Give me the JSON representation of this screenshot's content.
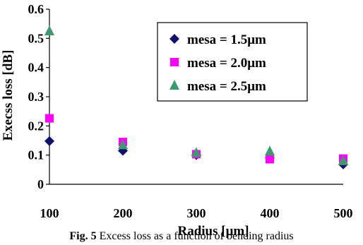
{
  "chart_data": {
    "type": "scatter",
    "title": "",
    "xlabel": "Radius [μm]",
    "ylabel": "Execss loss [dB]",
    "xlim": [
      100,
      500
    ],
    "ylim": [
      0,
      0.6
    ],
    "x_ticks": [
      "100",
      "200",
      "300",
      "400",
      "500"
    ],
    "y_ticks": [
      "0",
      "0.1",
      "0.2",
      "0.3",
      "0.4",
      "0.5",
      "0.6"
    ],
    "grid": false,
    "legend_position": "top-right",
    "series": [
      {
        "name": "mesa = 1.5μm",
        "marker": "diamond",
        "color": "#10106e",
        "x": [
          100,
          200,
          300,
          400,
          500
        ],
        "y": [
          0.148,
          0.115,
          0.1,
          0.09,
          0.068
        ]
      },
      {
        "name": "mesa = 2.0μm",
        "marker": "square",
        "color": "#ff00ff",
        "x": [
          100,
          200,
          300,
          400,
          500
        ],
        "y": [
          0.226,
          0.145,
          0.103,
          0.086,
          0.088
        ]
      },
      {
        "name": "mesa = 2.5μm",
        "marker": "triangle",
        "color": "#3c9a6c",
        "x": [
          100,
          200,
          300,
          400,
          500
        ],
        "y": [
          0.525,
          0.135,
          0.108,
          0.113,
          0.08
        ]
      }
    ]
  },
  "caption": {
    "prefix": "Fig. 5",
    "text": "Excess loss as a function of bending radius"
  }
}
